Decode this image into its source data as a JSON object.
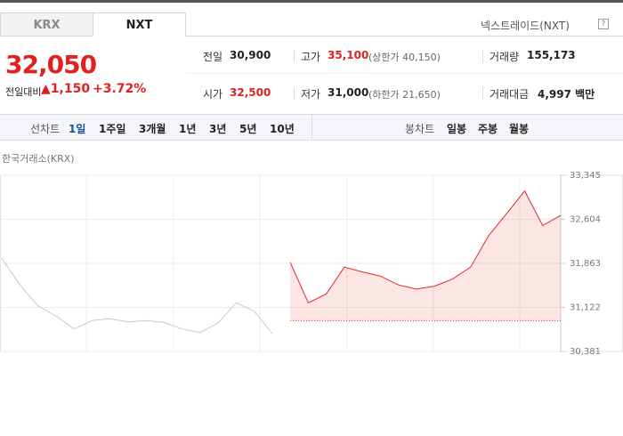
{
  "tabs": [
    "KRX",
    "NXT"
  ],
  "market_label": "넥스트레이드(NXT)",
  "price": "32,050",
  "change_label": "전일대비",
  "change": "1,150",
  "change_rate": "+3.72%",
  "stats": [
    {
      "label": "전일",
      "value": "30,900"
    },
    {
      "label": "고가",
      "value": "35,100",
      "note": "(상한가 40,150)"
    },
    {
      "label": "거래량",
      "value": "155,173"
    },
    {
      "label": "시가",
      "value": "32,500"
    },
    {
      "label": "저가",
      "value": "31,000",
      "note": "(하한가 21,650)"
    },
    {
      "label": "거래대금",
      "value": "4,997 백만"
    }
  ],
  "line_chart_label": "선차트",
  "periods": [
    "1일",
    "1주일",
    "3개월",
    "1년",
    "3년",
    "5년",
    "10년"
  ],
  "candle_chart_label": "봉차트",
  "candle_periods": [
    "일봉",
    "주봉",
    "월봉"
  ],
  "chart_data": {
    "type": "line",
    "title": "한국거래소(KRX)",
    "series": [
      {
        "name": "KRX",
        "color": "#c8c8c8",
        "values": [
          31950,
          31500,
          31150,
          30980,
          30760,
          30900,
          30930,
          30880,
          30900,
          30870,
          30760,
          30700,
          30860,
          31200,
          31060,
          30680,
          null,
          null,
          null,
          null,
          null,
          null,
          null,
          null,
          null,
          null,
          null,
          null,
          null,
          null,
          null,
          null
        ]
      },
      {
        "name": "NXT",
        "color": "#e8262a",
        "values": [
          null,
          null,
          null,
          null,
          null,
          null,
          null,
          null,
          null,
          null,
          null,
          null,
          null,
          null,
          null,
          null,
          31880,
          31200,
          31350,
          31800,
          31720,
          31650,
          31500,
          31430,
          31480,
          31600,
          31800,
          32330,
          32700,
          33080,
          32500,
          32670
        ]
      }
    ],
    "baseline": 30900,
    "ylim": [
      30381,
      33345
    ],
    "yticks": [
      {
        "value": 33345,
        "label": "33,345"
      },
      {
        "value": 32604,
        "label": "32,604"
      },
      {
        "value": 31863,
        "label": "31,863"
      },
      {
        "value": 31122,
        "label": "31,122"
      },
      {
        "value": 30381,
        "label": "30,381"
      }
    ],
    "grid": true
  }
}
